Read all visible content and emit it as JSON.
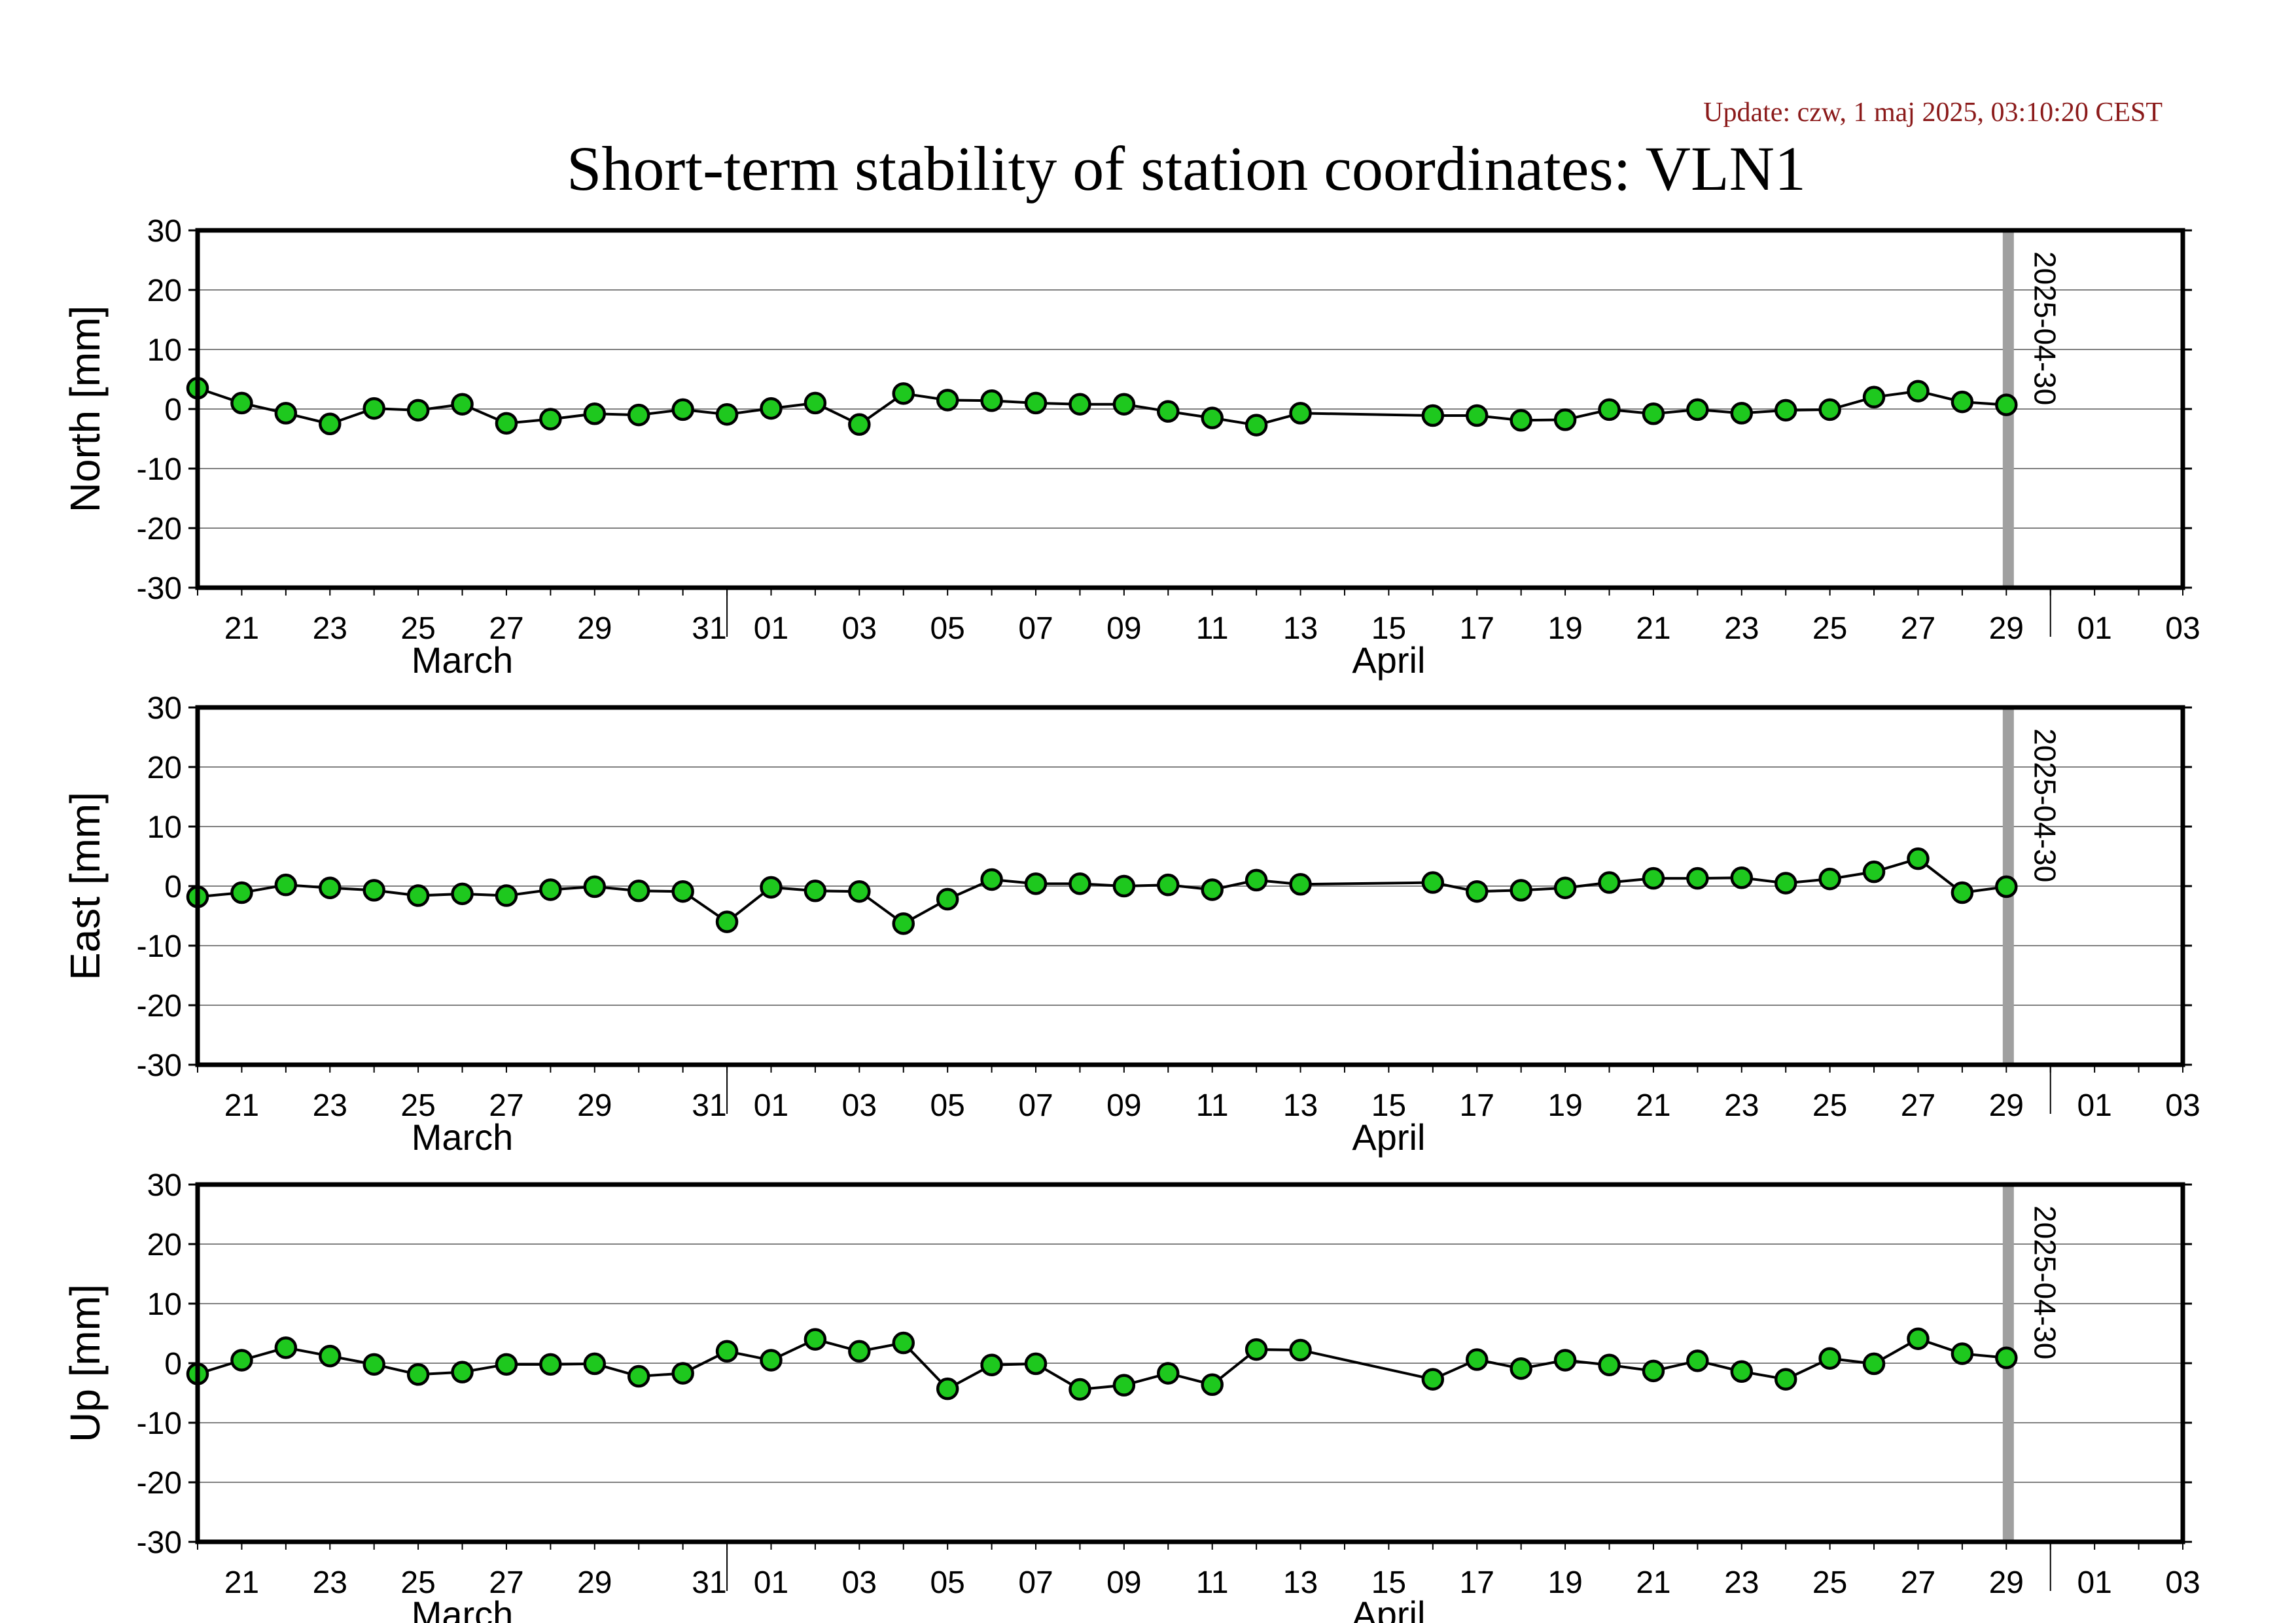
{
  "header": {
    "update_text": "Update: czw, 1 maj 2025, 03:10:20 CEST",
    "title": "Short-term stability of station coordinates: VLN1"
  },
  "colors": {
    "marker_fill": "#1ec81e",
    "marker_stroke": "#000000",
    "line": "#000000",
    "grid": "#808080",
    "marker_band": "#a0a0a0",
    "update_text": "#8b1a1a",
    "frame": "#000000"
  },
  "chart_data": [
    {
      "type": "line",
      "ylabel": "North [mm]",
      "ylim": [
        -30,
        30
      ],
      "yticks": [
        30,
        20,
        10,
        0,
        -10,
        -20,
        -30
      ],
      "xlim": [
        "2025-03-20",
        "2025-05-04"
      ],
      "x_ticks": [
        "21",
        "23",
        "25",
        "27",
        "29",
        "31",
        "01",
        "03",
        "05",
        "07",
        "09",
        "11",
        "13",
        "15",
        "17",
        "19",
        "21",
        "23",
        "25",
        "27",
        "29",
        "01",
        "03"
      ],
      "month_labels": [
        "March",
        "April"
      ],
      "marker_date": "2025-04-30",
      "grid": true,
      "series": [
        {
          "x": [
            "2025-03-20",
            "2025-03-21",
            "2025-03-22",
            "2025-03-23",
            "2025-03-24",
            "2025-03-25",
            "2025-03-26",
            "2025-03-27",
            "2025-03-28",
            "2025-03-29",
            "2025-03-30",
            "2025-03-31",
            "2025-04-01",
            "2025-04-02",
            "2025-04-03",
            "2025-04-04",
            "2025-04-05",
            "2025-04-06",
            "2025-04-07",
            "2025-04-08",
            "2025-04-09",
            "2025-04-10",
            "2025-04-11",
            "2025-04-12",
            "2025-04-13",
            "2025-04-14",
            "2025-04-17",
            "2025-04-18",
            "2025-04-19",
            "2025-04-20",
            "2025-04-21",
            "2025-04-22",
            "2025-04-23",
            "2025-04-24",
            "2025-04-25",
            "2025-04-26",
            "2025-04-27",
            "2025-04-28",
            "2025-04-29",
            "2025-04-30"
          ],
          "y": [
            3.5,
            1.0,
            -0.7,
            -2.5,
            0.1,
            -0.2,
            0.8,
            -2.4,
            -1.7,
            -0.8,
            -1.0,
            -0.1,
            -0.9,
            0.1,
            1.0,
            -2.6,
            2.6,
            1.5,
            1.4,
            1.0,
            0.8,
            0.8,
            -0.4,
            -1.5,
            -2.7,
            -0.7,
            -1.1,
            -1.1,
            -1.9,
            -1.8,
            -0.1,
            -0.8,
            -0.1,
            -0.7,
            -0.2,
            -0.1,
            2.0,
            3.0,
            1.2,
            0.7
          ]
        }
      ]
    },
    {
      "type": "line",
      "ylabel": "East [mm]",
      "ylim": [
        -30,
        30
      ],
      "yticks": [
        30,
        20,
        10,
        0,
        -10,
        -20,
        -30
      ],
      "xlim": [
        "2025-03-20",
        "2025-05-04"
      ],
      "x_ticks": [
        "21",
        "23",
        "25",
        "27",
        "29",
        "31",
        "01",
        "03",
        "05",
        "07",
        "09",
        "11",
        "13",
        "15",
        "17",
        "19",
        "21",
        "23",
        "25",
        "27",
        "29",
        "01",
        "03"
      ],
      "month_labels": [
        "March",
        "April"
      ],
      "marker_date": "2025-04-30",
      "grid": true,
      "series": [
        {
          "x": [
            "2025-03-20",
            "2025-03-21",
            "2025-03-22",
            "2025-03-23",
            "2025-03-24",
            "2025-03-25",
            "2025-03-26",
            "2025-03-27",
            "2025-03-28",
            "2025-03-29",
            "2025-03-30",
            "2025-03-31",
            "2025-04-01",
            "2025-04-02",
            "2025-04-03",
            "2025-04-04",
            "2025-04-05",
            "2025-04-06",
            "2025-04-07",
            "2025-04-08",
            "2025-04-09",
            "2025-04-10",
            "2025-04-11",
            "2025-04-12",
            "2025-04-13",
            "2025-04-14",
            "2025-04-17",
            "2025-04-18",
            "2025-04-19",
            "2025-04-20",
            "2025-04-21",
            "2025-04-22",
            "2025-04-23",
            "2025-04-24",
            "2025-04-25",
            "2025-04-26",
            "2025-04-27",
            "2025-04-28",
            "2025-04-29",
            "2025-04-30"
          ],
          "y": [
            -1.8,
            -1.1,
            0.2,
            -0.3,
            -0.7,
            -1.6,
            -1.3,
            -1.6,
            -0.6,
            -0.1,
            -0.8,
            -0.9,
            -6.0,
            -0.2,
            -0.8,
            -0.9,
            -6.3,
            -2.2,
            1.1,
            0.4,
            0.4,
            0.0,
            0.2,
            -0.6,
            1.0,
            0.3,
            0.6,
            -0.9,
            -0.7,
            -0.3,
            0.6,
            1.3,
            1.3,
            1.4,
            0.5,
            1.2,
            2.4,
            4.6,
            -1.1,
            -0.1
          ]
        }
      ]
    },
    {
      "type": "line",
      "ylabel": "Up [mm]",
      "ylim": [
        -30,
        30
      ],
      "yticks": [
        30,
        20,
        10,
        0,
        -10,
        -20,
        -30
      ],
      "xlim": [
        "2025-03-20",
        "2025-05-04"
      ],
      "x_ticks": [
        "21",
        "23",
        "25",
        "27",
        "29",
        "31",
        "01",
        "03",
        "05",
        "07",
        "09",
        "11",
        "13",
        "15",
        "17",
        "19",
        "21",
        "23",
        "25",
        "27",
        "29",
        "01",
        "03"
      ],
      "month_labels": [
        "March",
        "April"
      ],
      "marker_date": "2025-04-30",
      "grid": true,
      "series": [
        {
          "x": [
            "2025-03-20",
            "2025-03-21",
            "2025-03-22",
            "2025-03-23",
            "2025-03-24",
            "2025-03-25",
            "2025-03-26",
            "2025-03-27",
            "2025-03-28",
            "2025-03-29",
            "2025-03-30",
            "2025-03-31",
            "2025-04-01",
            "2025-04-02",
            "2025-04-03",
            "2025-04-04",
            "2025-04-05",
            "2025-04-06",
            "2025-04-07",
            "2025-04-08",
            "2025-04-09",
            "2025-04-10",
            "2025-04-11",
            "2025-04-12",
            "2025-04-13",
            "2025-04-14",
            "2025-04-17",
            "2025-04-18",
            "2025-04-19",
            "2025-04-20",
            "2025-04-21",
            "2025-04-22",
            "2025-04-23",
            "2025-04-24",
            "2025-04-25",
            "2025-04-26",
            "2025-04-27",
            "2025-04-28",
            "2025-04-29",
            "2025-04-30"
          ],
          "y": [
            -1.8,
            0.5,
            2.6,
            1.2,
            -0.2,
            -1.9,
            -1.5,
            -0.2,
            -0.2,
            -0.1,
            -2.2,
            -1.7,
            2.0,
            0.5,
            4.0,
            2.0,
            3.4,
            -4.3,
            -0.3,
            -0.1,
            -4.4,
            -3.7,
            -1.7,
            -3.6,
            2.3,
            2.2,
            -2.7,
            0.6,
            -0.9,
            0.5,
            -0.3,
            -1.3,
            0.4,
            -1.4,
            -2.7,
            0.8,
            -0.1,
            4.1,
            1.6,
            0.9
          ]
        }
      ]
    }
  ]
}
